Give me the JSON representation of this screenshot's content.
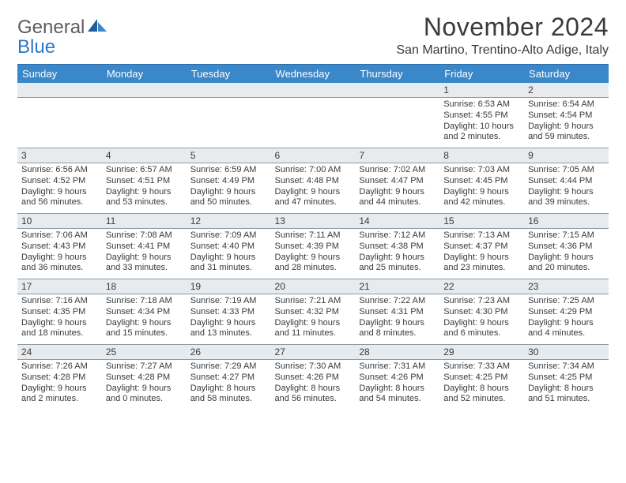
{
  "brand": {
    "line1": "General",
    "line2": "Blue"
  },
  "title": "November 2024",
  "location": "San Martino, Trentino-Alto Adige, Italy",
  "colors": {
    "header_bg": "#3a87c9",
    "header_text": "#ffffff",
    "daynum_bg": "#e8ebee",
    "body_text": "#3a3a3a",
    "rule": "#8f9aa3",
    "logo_gray": "#5c5c5c",
    "logo_blue": "#2d78c6",
    "logo_mark_dark": "#1f5c99",
    "logo_mark_light": "#3a87c9"
  },
  "day_names": [
    "Sunday",
    "Monday",
    "Tuesday",
    "Wednesday",
    "Thursday",
    "Friday",
    "Saturday"
  ],
  "weeks": [
    [
      {
        "n": "",
        "sr": "",
        "ss": "",
        "dl": ""
      },
      {
        "n": "",
        "sr": "",
        "ss": "",
        "dl": ""
      },
      {
        "n": "",
        "sr": "",
        "ss": "",
        "dl": ""
      },
      {
        "n": "",
        "sr": "",
        "ss": "",
        "dl": ""
      },
      {
        "n": "",
        "sr": "",
        "ss": "",
        "dl": ""
      },
      {
        "n": "1",
        "sr": "Sunrise: 6:53 AM",
        "ss": "Sunset: 4:55 PM",
        "dl": "Daylight: 10 hours and 2 minutes."
      },
      {
        "n": "2",
        "sr": "Sunrise: 6:54 AM",
        "ss": "Sunset: 4:54 PM",
        "dl": "Daylight: 9 hours and 59 minutes."
      }
    ],
    [
      {
        "n": "3",
        "sr": "Sunrise: 6:56 AM",
        "ss": "Sunset: 4:52 PM",
        "dl": "Daylight: 9 hours and 56 minutes."
      },
      {
        "n": "4",
        "sr": "Sunrise: 6:57 AM",
        "ss": "Sunset: 4:51 PM",
        "dl": "Daylight: 9 hours and 53 minutes."
      },
      {
        "n": "5",
        "sr": "Sunrise: 6:59 AM",
        "ss": "Sunset: 4:49 PM",
        "dl": "Daylight: 9 hours and 50 minutes."
      },
      {
        "n": "6",
        "sr": "Sunrise: 7:00 AM",
        "ss": "Sunset: 4:48 PM",
        "dl": "Daylight: 9 hours and 47 minutes."
      },
      {
        "n": "7",
        "sr": "Sunrise: 7:02 AM",
        "ss": "Sunset: 4:47 PM",
        "dl": "Daylight: 9 hours and 44 minutes."
      },
      {
        "n": "8",
        "sr": "Sunrise: 7:03 AM",
        "ss": "Sunset: 4:45 PM",
        "dl": "Daylight: 9 hours and 42 minutes."
      },
      {
        "n": "9",
        "sr": "Sunrise: 7:05 AM",
        "ss": "Sunset: 4:44 PM",
        "dl": "Daylight: 9 hours and 39 minutes."
      }
    ],
    [
      {
        "n": "10",
        "sr": "Sunrise: 7:06 AM",
        "ss": "Sunset: 4:43 PM",
        "dl": "Daylight: 9 hours and 36 minutes."
      },
      {
        "n": "11",
        "sr": "Sunrise: 7:08 AM",
        "ss": "Sunset: 4:41 PM",
        "dl": "Daylight: 9 hours and 33 minutes."
      },
      {
        "n": "12",
        "sr": "Sunrise: 7:09 AM",
        "ss": "Sunset: 4:40 PM",
        "dl": "Daylight: 9 hours and 31 minutes."
      },
      {
        "n": "13",
        "sr": "Sunrise: 7:11 AM",
        "ss": "Sunset: 4:39 PM",
        "dl": "Daylight: 9 hours and 28 minutes."
      },
      {
        "n": "14",
        "sr": "Sunrise: 7:12 AM",
        "ss": "Sunset: 4:38 PM",
        "dl": "Daylight: 9 hours and 25 minutes."
      },
      {
        "n": "15",
        "sr": "Sunrise: 7:13 AM",
        "ss": "Sunset: 4:37 PM",
        "dl": "Daylight: 9 hours and 23 minutes."
      },
      {
        "n": "16",
        "sr": "Sunrise: 7:15 AM",
        "ss": "Sunset: 4:36 PM",
        "dl": "Daylight: 9 hours and 20 minutes."
      }
    ],
    [
      {
        "n": "17",
        "sr": "Sunrise: 7:16 AM",
        "ss": "Sunset: 4:35 PM",
        "dl": "Daylight: 9 hours and 18 minutes."
      },
      {
        "n": "18",
        "sr": "Sunrise: 7:18 AM",
        "ss": "Sunset: 4:34 PM",
        "dl": "Daylight: 9 hours and 15 minutes."
      },
      {
        "n": "19",
        "sr": "Sunrise: 7:19 AM",
        "ss": "Sunset: 4:33 PM",
        "dl": "Daylight: 9 hours and 13 minutes."
      },
      {
        "n": "20",
        "sr": "Sunrise: 7:21 AM",
        "ss": "Sunset: 4:32 PM",
        "dl": "Daylight: 9 hours and 11 minutes."
      },
      {
        "n": "21",
        "sr": "Sunrise: 7:22 AM",
        "ss": "Sunset: 4:31 PM",
        "dl": "Daylight: 9 hours and 8 minutes."
      },
      {
        "n": "22",
        "sr": "Sunrise: 7:23 AM",
        "ss": "Sunset: 4:30 PM",
        "dl": "Daylight: 9 hours and 6 minutes."
      },
      {
        "n": "23",
        "sr": "Sunrise: 7:25 AM",
        "ss": "Sunset: 4:29 PM",
        "dl": "Daylight: 9 hours and 4 minutes."
      }
    ],
    [
      {
        "n": "24",
        "sr": "Sunrise: 7:26 AM",
        "ss": "Sunset: 4:28 PM",
        "dl": "Daylight: 9 hours and 2 minutes."
      },
      {
        "n": "25",
        "sr": "Sunrise: 7:27 AM",
        "ss": "Sunset: 4:28 PM",
        "dl": "Daylight: 9 hours and 0 minutes."
      },
      {
        "n": "26",
        "sr": "Sunrise: 7:29 AM",
        "ss": "Sunset: 4:27 PM",
        "dl": "Daylight: 8 hours and 58 minutes."
      },
      {
        "n": "27",
        "sr": "Sunrise: 7:30 AM",
        "ss": "Sunset: 4:26 PM",
        "dl": "Daylight: 8 hours and 56 minutes."
      },
      {
        "n": "28",
        "sr": "Sunrise: 7:31 AM",
        "ss": "Sunset: 4:26 PM",
        "dl": "Daylight: 8 hours and 54 minutes."
      },
      {
        "n": "29",
        "sr": "Sunrise: 7:33 AM",
        "ss": "Sunset: 4:25 PM",
        "dl": "Daylight: 8 hours and 52 minutes."
      },
      {
        "n": "30",
        "sr": "Sunrise: 7:34 AM",
        "ss": "Sunset: 4:25 PM",
        "dl": "Daylight: 8 hours and 51 minutes."
      }
    ]
  ]
}
